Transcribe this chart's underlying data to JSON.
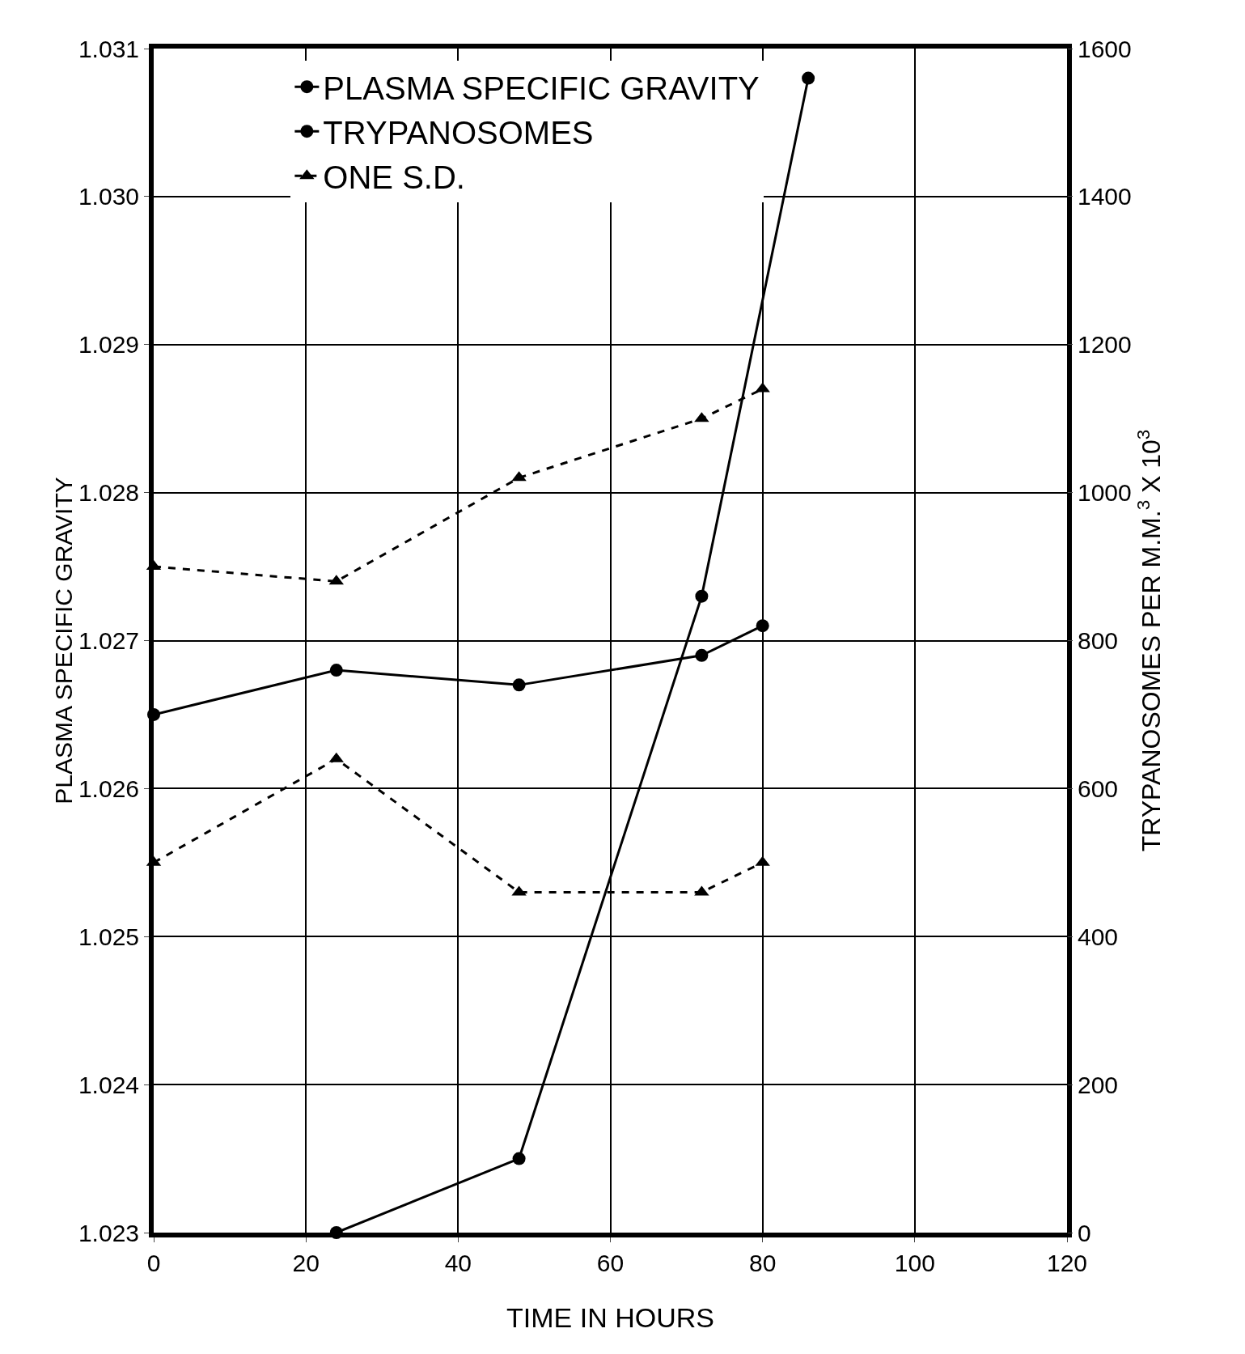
{
  "chart_data": {
    "type": "line",
    "xlabel": "TIME IN HOURS",
    "ylabel": "PLASMA SPECIFIC GRAVITY",
    "y2label": "TRYPANOSOMES PER M.M.$^{3}$ X 10$^{3}$",
    "xlim": [
      0,
      120
    ],
    "xticks": [
      0,
      20,
      40,
      60,
      80,
      100,
      120
    ],
    "ylim": [
      1.023,
      1.031
    ],
    "yticks": [
      1.023,
      1.024,
      1.025,
      1.026,
      1.027,
      1.028,
      1.029,
      {
        "value": 1.03,
        "label": "1.030"
      },
      1.031
    ],
    "y2lim": [
      0,
      1600
    ],
    "y2ticks": [
      0,
      200,
      400,
      600,
      800,
      1000,
      1200,
      1400,
      1600
    ],
    "grid": true,
    "legend": "top left",
    "series": [
      {
        "name": "PLASMA SPECIFIC GRAVITY",
        "color": "#000000",
        "marker": "circle",
        "line_style": "solid",
        "x": [
          0,
          24,
          48,
          72,
          80
        ],
        "values": [
          1.0265,
          1.0268,
          1.0267,
          1.0269,
          1.0271
        ]
      },
      {
        "name": "TRYPANOSOMES",
        "color": "#000000",
        "marker": "circle",
        "line_style": "solid",
        "axis": "y2",
        "x": [
          24,
          48,
          72,
          86
        ],
        "values": [
          0,
          100,
          860,
          1560
        ]
      },
      {
        "name": "ONE S.D.",
        "color": "#000000",
        "marker": "triangle",
        "line_style": "dashed",
        "x": [
          0,
          24,
          48,
          72,
          80
        ],
        "values": [
          1.0275,
          1.0274,
          1.0281,
          1.0285,
          1.0287
        ]
      },
      {
        "color": "#000000",
        "marker": "triangle",
        "line_style": "dashed",
        "x": [
          0,
          24,
          48,
          72,
          80
        ],
        "values": [
          1.0255,
          1.0262,
          1.0253,
          1.0253,
          1.0255
        ]
      }
    ]
  }
}
